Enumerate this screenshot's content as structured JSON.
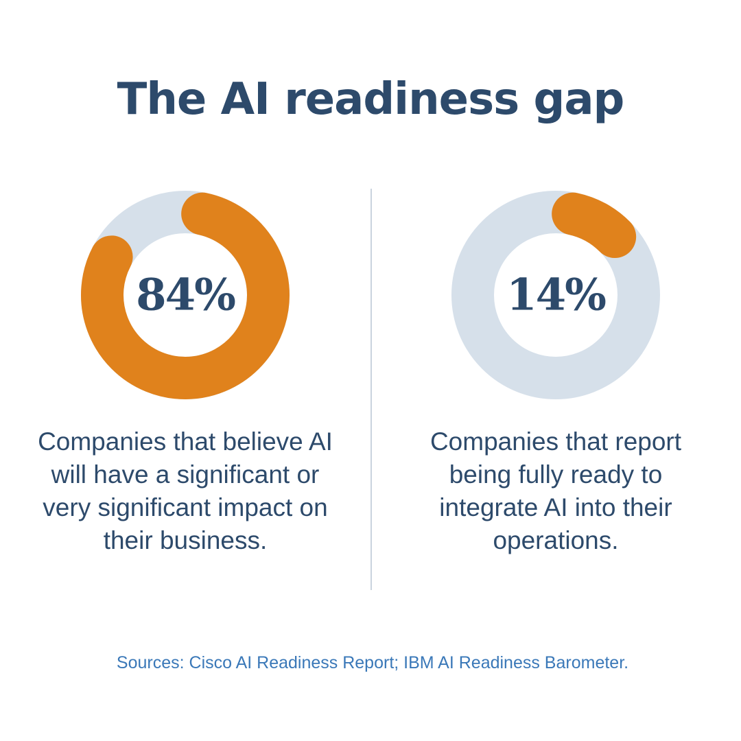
{
  "title": "The AI readiness gap",
  "colors": {
    "accent": "#e0821c",
    "track": "#d6e0ea",
    "text": "#2d4a6b",
    "source": "#3a78b8",
    "divider": "#c9d3de"
  },
  "chart_data": [
    {
      "type": "pie",
      "style": "donut",
      "value_label": "84%",
      "value": 84,
      "caption": "Companies that believe AI will have a significant or very significant impact on their business."
    },
    {
      "type": "pie",
      "style": "donut",
      "value_label": "14%",
      "value": 14,
      "caption": "Companies that report being fully ready to integrate AI into their operations."
    }
  ],
  "sources": "Sources: Cisco AI Readiness Report; IBM AI Readiness Barometer."
}
